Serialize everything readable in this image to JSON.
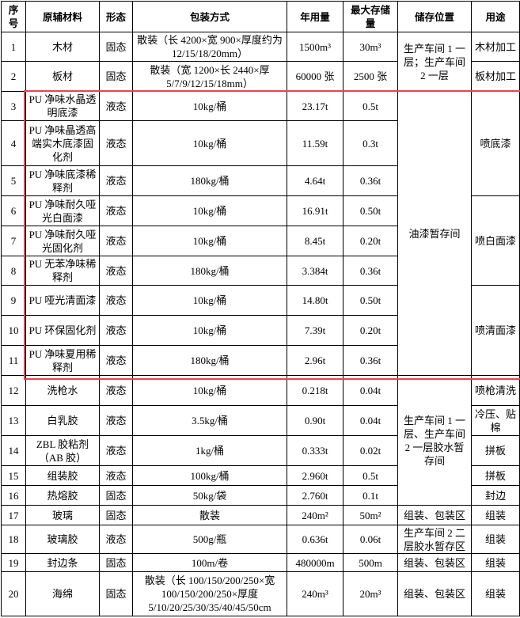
{
  "table": {
    "header": [
      "序号",
      "原辅材料",
      "形态",
      "包装方式",
      "年用量",
      "最大存储量",
      "储存位置",
      "用途"
    ],
    "rows": [
      [
        "1",
        "木材",
        "固态",
        "散装（长 4200×宽 900×厚度约为 12/15/18/20mm）",
        "1500m³",
        "30m³"
      ],
      [
        "2",
        "板材",
        "固态",
        "散装（宽 1200×长 2440×厚 5/7/9/12/15/18mm）",
        "60000 张",
        "2500 张"
      ],
      [
        "3",
        "PU 净味水晶透明底漆",
        "液态",
        "10kg/桶",
        "23.17t",
        "0.5t"
      ],
      [
        "4",
        "PU 净味晶透高端实木底漆固化剂",
        "液态",
        "10kg/桶",
        "11.59t",
        "0.3t"
      ],
      [
        "5",
        "PU 净味底漆稀释剂",
        "液态",
        "180kg/桶",
        "4.64t",
        "0.36t"
      ],
      [
        "6",
        "PU 净味耐久哑光白面漆",
        "液态",
        "10kg/桶",
        "16.91t",
        "0.50t"
      ],
      [
        "7",
        "PU 净味耐久哑光固化剂",
        "液态",
        "10kg/桶",
        "8.45t",
        "0.20t"
      ],
      [
        "8",
        "PU 无苯净味稀释剂",
        "液态",
        "180kg/桶",
        "3.384t",
        "0.36t"
      ],
      [
        "9",
        "PU 哑光清面漆",
        "液态",
        "10kg/桶",
        "14.80t",
        "0.50t"
      ],
      [
        "10",
        "PU 环保固化剂",
        "液态",
        "10kg/桶",
        "7.39t",
        "0.20t"
      ],
      [
        "11",
        "PU 净味夏用稀释剂",
        "液态",
        "180kg/桶",
        "2.96t",
        "0.36t"
      ],
      [
        "12",
        "洗枪水",
        "液态",
        "10kg/桶",
        "0.218t",
        "0.04t"
      ],
      [
        "13",
        "白乳胶",
        "液态",
        "3.5kg/桶",
        "0.90t",
        "0.04t"
      ],
      [
        "14",
        "ZBL 胶粘剂（AB 胶）",
        "液态",
        "1kg/桶",
        "0.333t",
        "0.02t"
      ],
      [
        "15",
        "组装胶",
        "液态",
        "100kg/桶",
        "2.960t",
        "0.5t"
      ],
      [
        "16",
        "热熔胶",
        "固态",
        "50kg/袋",
        "2.760t",
        "0.1t"
      ],
      [
        "17",
        "玻璃",
        "固态",
        "散装",
        "240m²",
        "50m²"
      ],
      [
        "18",
        "玻璃胶",
        "液态",
        "500g/瓶",
        "0.636t",
        "0.06t"
      ],
      [
        "19",
        "封边条",
        "固态",
        "100m/卷",
        "480000m",
        "500m"
      ],
      [
        "20",
        "海绵",
        "固态",
        "散装（长 100/150/200/250×宽 100/150/200/250×厚度 5/10/20/25/30/35/40/45/50cm",
        "240m³",
        "20m³"
      ]
    ],
    "storage": [
      "生产车间 1 一层；生产车间 2 一层",
      "油漆暂存间",
      "生产车间 1 一层、生产车间 2 一层胶水暂存间",
      "组装、包装区",
      "生产车间 2 二层胶水暂存区",
      "组装、包装区",
      "组装、包装区"
    ],
    "usage": [
      "木材加工",
      "板材加工",
      "喷底漆",
      "喷白面漆",
      "喷清面漆",
      "喷枪清洗",
      "冷压、贴棉",
      "拼板",
      "拼板",
      "封边",
      "组装",
      "组装",
      "组装",
      "组装"
    ]
  }
}
